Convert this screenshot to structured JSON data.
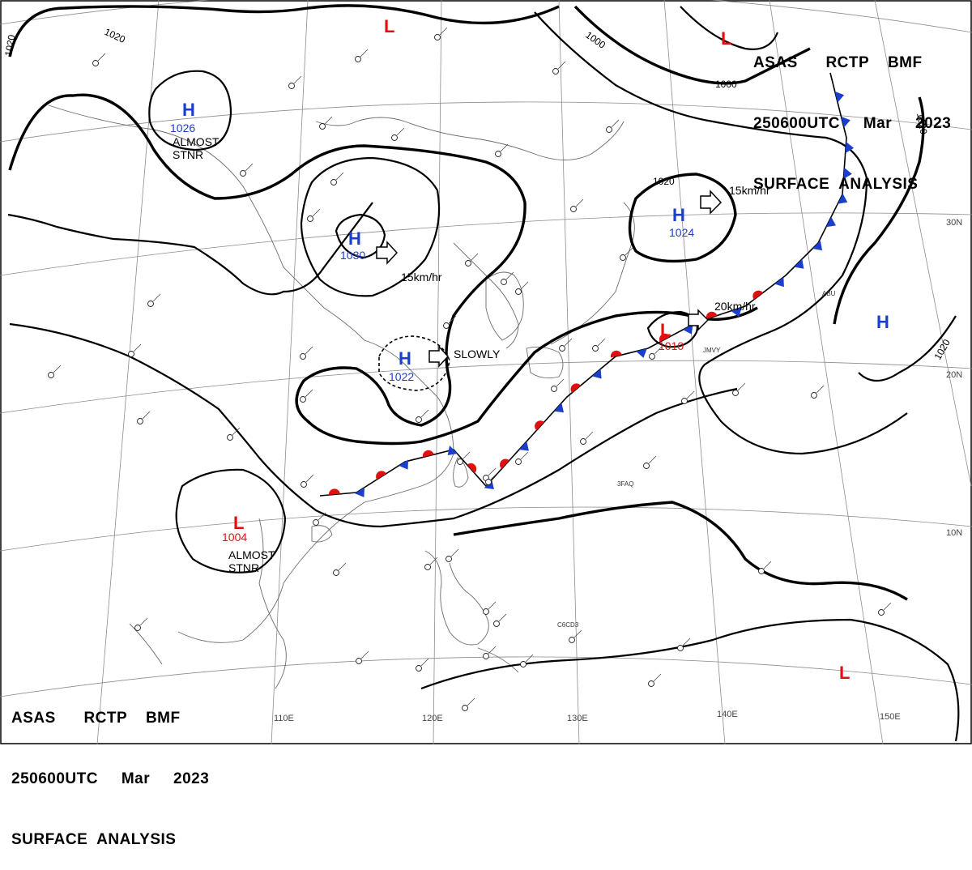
{
  "header": {
    "line1": "ASAS      RCTP    BMF",
    "line2": "250600UTC     Mar     2023",
    "line3": "SURFACE  ANALYSIS"
  },
  "colors": {
    "high": "#1a3fcc",
    "low": "#e01010",
    "cold_front": "#1a3fcc",
    "warm_front": "#e01010"
  },
  "axes": {
    "lon_labels": [
      "110E",
      "120E",
      "130E",
      "140E",
      "150E"
    ],
    "lat_labels": [
      "30N",
      "20N",
      "10N"
    ]
  },
  "isobar_labels": [
    "1020",
    "1020",
    "1000",
    "1000",
    "1020",
    "1020",
    "1020"
  ],
  "pressure_systems": [
    {
      "type": "H",
      "value": "1026",
      "note": "ALMOST\nSTNR"
    },
    {
      "type": "H",
      "value": "1030",
      "note": "15km/hr"
    },
    {
      "type": "H",
      "value": "1022",
      "note": "SLOWLY"
    },
    {
      "type": "H",
      "value": "1024",
      "note": "15km/hr"
    },
    {
      "type": "H",
      "value": "",
      "note": ""
    },
    {
      "type": "L",
      "value": "1010",
      "note": "20km/hr"
    },
    {
      "type": "L",
      "value": "1004",
      "note": "ALMOST\nSTNR"
    },
    {
      "type": "L",
      "value": "",
      "note": ""
    },
    {
      "type": "L",
      "value": "",
      "note": ""
    },
    {
      "type": "L",
      "value": "",
      "note": ""
    }
  ],
  "station_labels": [
    "ABU",
    "JMVY",
    "3FAQ",
    "C6CD3"
  ]
}
